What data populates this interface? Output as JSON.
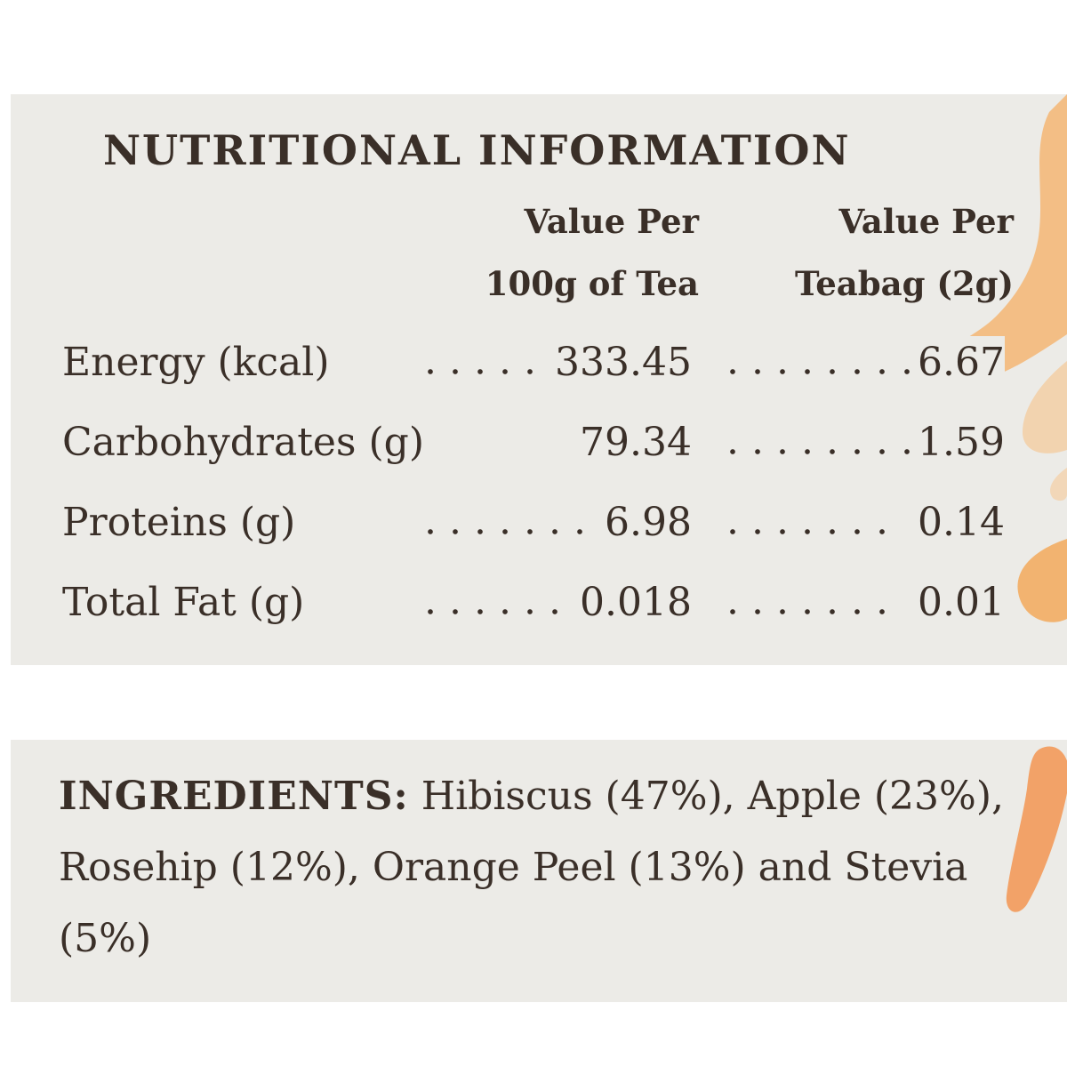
{
  "nutrition": {
    "title": "NUTRITIONAL INFORMATION",
    "column_headers": {
      "per_100g": [
        "Value Per",
        "100g of Tea"
      ],
      "per_teabag": [
        "Value Per",
        "Teabag (2g)"
      ]
    },
    "rows": [
      {
        "label": "Energy (kcal)",
        "per_100g": "333.45",
        "per_teabag": "6.67"
      },
      {
        "label": "Carbohydrates (g)",
        "per_100g": "79.34",
        "per_teabag": "1.59"
      },
      {
        "label": "Proteins (g)",
        "per_100g": "6.98",
        "per_teabag": "0.14"
      },
      {
        "label": "Total Fat (g)",
        "per_100g": "0.018",
        "per_teabag": "0.01"
      }
    ]
  },
  "ingredients": {
    "label": "INGREDIENTS:",
    "text": "Hibiscus (47%), Apple (23%), Rosehip (12%), Orange Peel (13%) and Stevia (5%)"
  },
  "colors": {
    "panel_background": "#ecebe7",
    "text": "#3a2f28",
    "accent_splash": "#f2a24d"
  }
}
